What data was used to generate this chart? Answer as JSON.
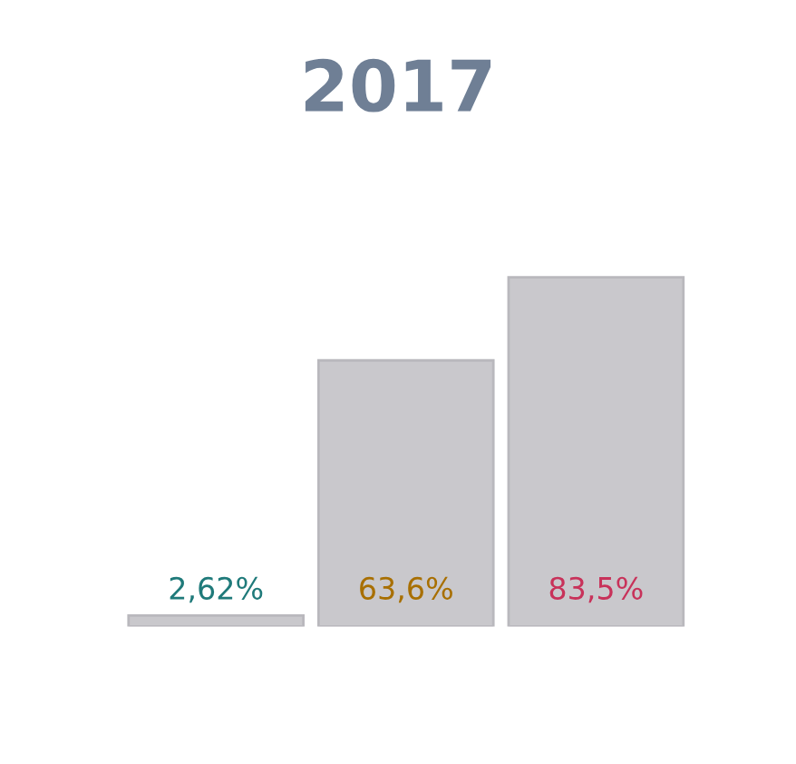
{
  "chart_data": {
    "type": "bar",
    "title": "2017",
    "categories": [
      null,
      null,
      null
    ],
    "values": [
      2.62,
      63.6,
      83.5
    ],
    "colors": [
      "#c9c8cc",
      "#c9c8cc",
      "#c9c8cc"
    ],
    "value_labels": [
      "2,62%",
      "63,6%",
      "83,5%"
    ],
    "grid": false,
    "legend": false
  }
}
